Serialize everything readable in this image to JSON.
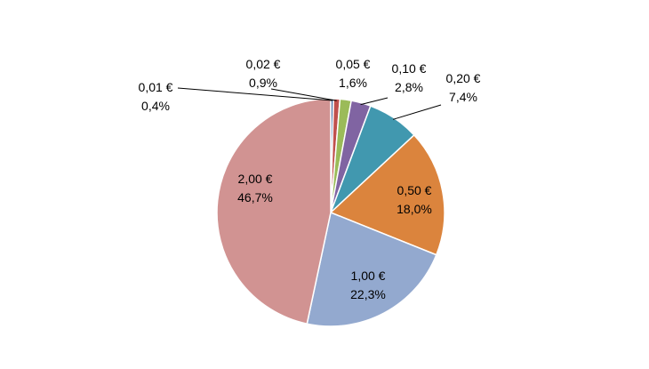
{
  "chart_data": {
    "type": "pie",
    "title": "",
    "legend": "none",
    "slices": [
      {
        "label": "0,01 €",
        "pct_label": "0,4%",
        "value": 0.4,
        "color": "#4a6fa5"
      },
      {
        "label": "0,02 €",
        "pct_label": "0,9%",
        "value": 0.9,
        "color": "#c0504d"
      },
      {
        "label": "0,05 €",
        "pct_label": "1,6%",
        "value": 1.6,
        "color": "#9bbb59"
      },
      {
        "label": "0,10 €",
        "pct_label": "2,8%",
        "value": 2.8,
        "color": "#8064a2"
      },
      {
        "label": "0,20 €",
        "pct_label": "7,4%",
        "value": 7.4,
        "color": "#4198af"
      },
      {
        "label": "0,50 €",
        "pct_label": "18,0%",
        "value": 18.0,
        "color": "#db843d"
      },
      {
        "label": "1,00 €",
        "pct_label": "22,3%",
        "value": 22.3,
        "color": "#93a9cf"
      },
      {
        "label": "2,00 €",
        "pct_label": "46,7%",
        "value": 46.7,
        "color": "#d19392"
      }
    ]
  }
}
